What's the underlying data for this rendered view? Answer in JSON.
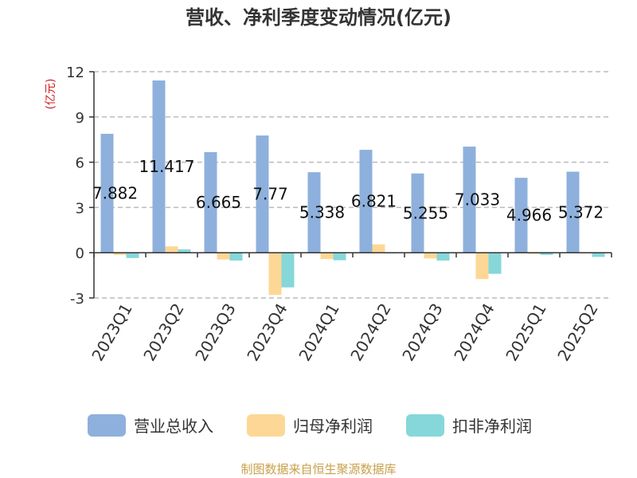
{
  "chart_data": {
    "type": "bar",
    "title": "营收、净利季度变动情况(亿元)",
    "ylabel": "(亿元)",
    "ylim": [
      -3,
      12
    ],
    "yticks": [
      -3,
      0,
      3,
      6,
      9,
      12
    ],
    "grid": true,
    "legend_position": "bottom",
    "categories": [
      "2023Q1",
      "2023Q2",
      "2023Q3",
      "2023Q4",
      "2024Q1",
      "2024Q2",
      "2024Q3",
      "2024Q4",
      "2025Q1",
      "2025Q2"
    ],
    "series": [
      {
        "name": "营业总收入",
        "color": "#8eb0dc",
        "values": [
          7.882,
          11.417,
          6.665,
          7.77,
          5.338,
          6.821,
          5.255,
          7.033,
          4.966,
          5.372
        ]
      },
      {
        "name": "归母净利润",
        "color": "#fdd795",
        "values": [
          -0.15,
          0.42,
          -0.45,
          -2.8,
          -0.42,
          0.55,
          -0.38,
          -1.75,
          -0.08,
          -0.05
        ]
      },
      {
        "name": "扣非净利润",
        "color": "#86d7d9",
        "values": [
          -0.35,
          0.22,
          -0.52,
          -2.3,
          -0.5,
          -0.05,
          -0.52,
          -1.4,
          -0.15,
          -0.28
        ]
      }
    ],
    "data_labels": [
      "7.882",
      "11.417",
      "6.665",
      "7.77",
      "5.338",
      "6.821",
      "5.255",
      "7.033",
      "4.966",
      "5.372"
    ],
    "source": "制图数据来自恒生聚源数据库"
  }
}
